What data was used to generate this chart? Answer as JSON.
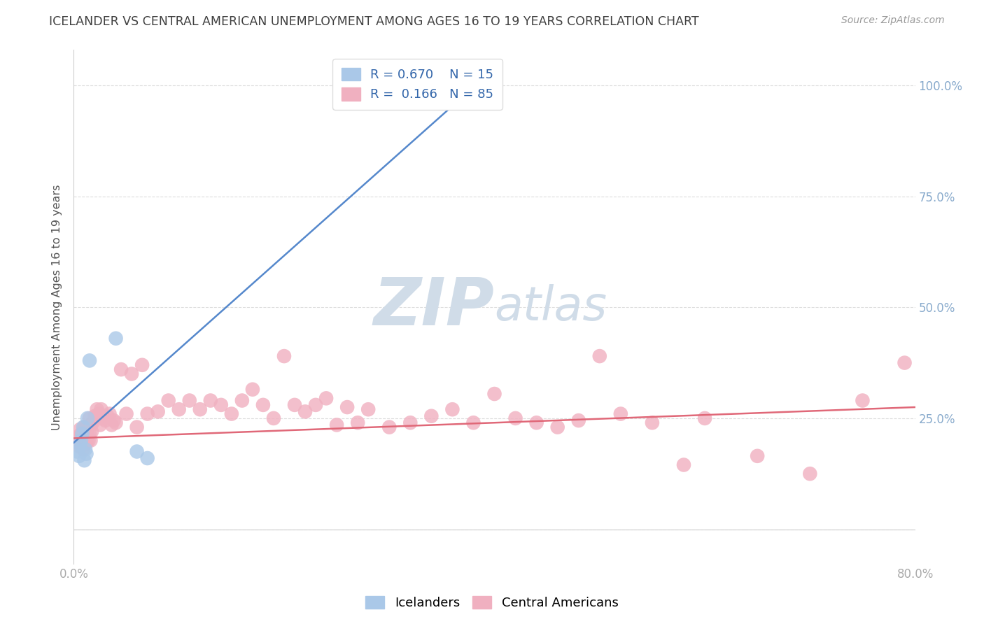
{
  "title": "ICELANDER VS CENTRAL AMERICAN UNEMPLOYMENT AMONG AGES 16 TO 19 YEARS CORRELATION CHART",
  "source": "Source: ZipAtlas.com",
  "ylabel": "Unemployment Among Ages 16 to 19 years",
  "xlim": [
    0.0,
    0.8
  ],
  "ylim": [
    -0.08,
    1.08
  ],
  "legend1_r": "0.670",
  "legend1_n": "15",
  "legend2_r": "0.166",
  "legend2_n": "85",
  "blue_scatter_color": "#aac8e8",
  "pink_scatter_color": "#f0b0c0",
  "blue_line_color": "#5588cc",
  "pink_line_color": "#e06878",
  "title_color": "#404040",
  "right_tick_color": "#88aacc",
  "watermark_color": "#d0dce8",
  "blue_line_x0": 0.0,
  "blue_line_y0": 0.195,
  "blue_line_x1": 0.382,
  "blue_line_y1": 1.0,
  "pink_line_x0": 0.0,
  "pink_line_y0": 0.205,
  "pink_line_x1": 0.8,
  "pink_line_y1": 0.275,
  "icelanders_x": [
    0.003,
    0.005,
    0.006,
    0.007,
    0.008,
    0.009,
    0.01,
    0.011,
    0.012,
    0.013,
    0.015,
    0.06,
    0.07,
    0.04,
    0.382
  ],
  "icelanders_y": [
    0.175,
    0.165,
    0.19,
    0.2,
    0.215,
    0.23,
    0.155,
    0.18,
    0.17,
    0.25,
    0.38,
    0.175,
    0.16,
    0.43,
    1.0
  ],
  "central_americans_x": [
    0.003,
    0.004,
    0.005,
    0.006,
    0.006,
    0.007,
    0.007,
    0.008,
    0.008,
    0.009,
    0.009,
    0.01,
    0.01,
    0.01,
    0.011,
    0.011,
    0.012,
    0.012,
    0.013,
    0.013,
    0.014,
    0.015,
    0.015,
    0.016,
    0.016,
    0.017,
    0.018,
    0.02,
    0.022,
    0.024,
    0.025,
    0.026,
    0.028,
    0.03,
    0.032,
    0.034,
    0.036,
    0.038,
    0.04,
    0.045,
    0.05,
    0.055,
    0.06,
    0.065,
    0.07,
    0.08,
    0.09,
    0.1,
    0.11,
    0.12,
    0.13,
    0.14,
    0.15,
    0.16,
    0.17,
    0.18,
    0.19,
    0.2,
    0.21,
    0.22,
    0.23,
    0.24,
    0.25,
    0.26,
    0.27,
    0.28,
    0.3,
    0.32,
    0.34,
    0.36,
    0.38,
    0.4,
    0.42,
    0.44,
    0.46,
    0.48,
    0.5,
    0.52,
    0.55,
    0.58,
    0.6,
    0.65,
    0.7,
    0.75,
    0.79
  ],
  "central_americans_y": [
    0.2,
    0.195,
    0.21,
    0.185,
    0.225,
    0.2,
    0.215,
    0.195,
    0.21,
    0.18,
    0.22,
    0.19,
    0.21,
    0.23,
    0.2,
    0.215,
    0.195,
    0.225,
    0.21,
    0.23,
    0.2,
    0.25,
    0.215,
    0.2,
    0.235,
    0.22,
    0.24,
    0.255,
    0.27,
    0.26,
    0.235,
    0.27,
    0.25,
    0.245,
    0.255,
    0.26,
    0.235,
    0.245,
    0.24,
    0.36,
    0.26,
    0.35,
    0.23,
    0.37,
    0.26,
    0.265,
    0.29,
    0.27,
    0.29,
    0.27,
    0.29,
    0.28,
    0.26,
    0.29,
    0.315,
    0.28,
    0.25,
    0.39,
    0.28,
    0.265,
    0.28,
    0.295,
    0.235,
    0.275,
    0.24,
    0.27,
    0.23,
    0.24,
    0.255,
    0.27,
    0.24,
    0.305,
    0.25,
    0.24,
    0.23,
    0.245,
    0.39,
    0.26,
    0.24,
    0.145,
    0.25,
    0.165,
    0.125,
    0.29,
    0.375
  ]
}
